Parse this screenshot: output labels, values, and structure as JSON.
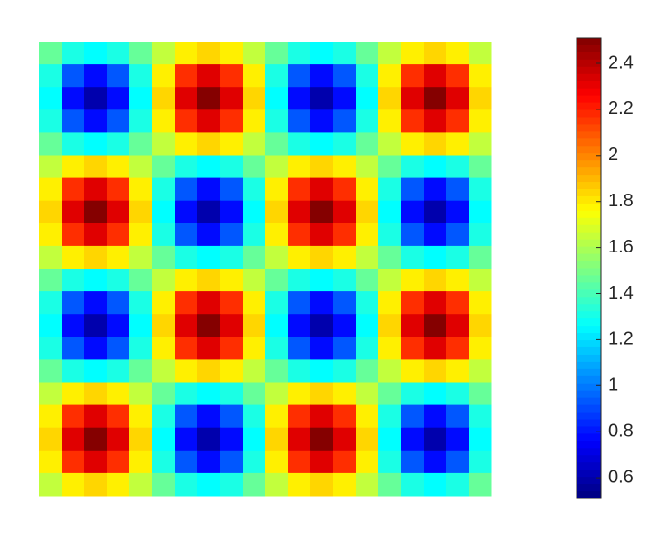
{
  "chart_data": {
    "type": "heatmap",
    "colormap": "jet",
    "z": [
      [
        1.46,
        1.31,
        1.26,
        1.31,
        1.46,
        1.64,
        1.79,
        1.84,
        1.79,
        1.64,
        1.46,
        1.31,
        1.26,
        1.31,
        1.46,
        1.64,
        1.79,
        1.84,
        1.79,
        1.64
      ],
      [
        1.31,
        0.93,
        0.78,
        0.93,
        1.31,
        1.79,
        2.17,
        2.32,
        2.17,
        1.79,
        1.31,
        0.93,
        0.78,
        0.93,
        1.31,
        1.79,
        2.17,
        2.32,
        2.17,
        1.79
      ],
      [
        1.26,
        0.78,
        0.6,
        0.78,
        1.26,
        1.84,
        2.32,
        2.5,
        2.32,
        1.84,
        1.26,
        0.78,
        0.6,
        0.78,
        1.26,
        1.84,
        2.32,
        2.5,
        2.32,
        1.84
      ],
      [
        1.31,
        0.93,
        0.78,
        0.93,
        1.31,
        1.79,
        2.17,
        2.32,
        2.17,
        1.79,
        1.31,
        0.93,
        0.78,
        0.93,
        1.31,
        1.79,
        2.17,
        2.32,
        2.17,
        1.79
      ],
      [
        1.46,
        1.31,
        1.26,
        1.31,
        1.46,
        1.64,
        1.79,
        1.84,
        1.79,
        1.64,
        1.46,
        1.31,
        1.26,
        1.31,
        1.46,
        1.64,
        1.79,
        1.84,
        1.79,
        1.64
      ],
      [
        1.64,
        1.79,
        1.84,
        1.79,
        1.64,
        1.46,
        1.31,
        1.26,
        1.31,
        1.46,
        1.64,
        1.79,
        1.84,
        1.79,
        1.64,
        1.46,
        1.31,
        1.26,
        1.31,
        1.46
      ],
      [
        1.79,
        2.17,
        2.32,
        2.17,
        1.79,
        1.31,
        0.93,
        0.78,
        0.93,
        1.31,
        1.79,
        2.17,
        2.32,
        2.17,
        1.79,
        1.31,
        0.93,
        0.78,
        0.93,
        1.31
      ],
      [
        1.84,
        2.32,
        2.5,
        2.32,
        1.84,
        1.26,
        0.78,
        0.6,
        0.78,
        1.26,
        1.84,
        2.32,
        2.5,
        2.32,
        1.84,
        1.26,
        0.78,
        0.6,
        0.78,
        1.26
      ],
      [
        1.79,
        2.17,
        2.32,
        2.17,
        1.79,
        1.31,
        0.93,
        0.78,
        0.93,
        1.31,
        1.79,
        2.17,
        2.32,
        2.17,
        1.79,
        1.31,
        0.93,
        0.78,
        0.93,
        1.31
      ],
      [
        1.64,
        1.79,
        1.84,
        1.79,
        1.64,
        1.46,
        1.31,
        1.26,
        1.31,
        1.46,
        1.64,
        1.79,
        1.84,
        1.79,
        1.64,
        1.46,
        1.31,
        1.26,
        1.31,
        1.46
      ],
      [
        1.46,
        1.31,
        1.26,
        1.31,
        1.46,
        1.64,
        1.79,
        1.84,
        1.79,
        1.64,
        1.46,
        1.31,
        1.26,
        1.31,
        1.46,
        1.64,
        1.79,
        1.84,
        1.79,
        1.64
      ],
      [
        1.31,
        0.93,
        0.78,
        0.93,
        1.31,
        1.79,
        2.17,
        2.32,
        2.17,
        1.79,
        1.31,
        0.93,
        0.78,
        0.93,
        1.31,
        1.79,
        2.17,
        2.32,
        2.17,
        1.79
      ],
      [
        1.26,
        0.78,
        0.6,
        0.78,
        1.26,
        1.84,
        2.32,
        2.5,
        2.32,
        1.84,
        1.26,
        0.78,
        0.6,
        0.78,
        1.26,
        1.84,
        2.32,
        2.5,
        2.32,
        1.84
      ],
      [
        1.31,
        0.93,
        0.78,
        0.93,
        1.31,
        1.79,
        2.17,
        2.32,
        2.17,
        1.79,
        1.31,
        0.93,
        0.78,
        0.93,
        1.31,
        1.79,
        2.17,
        2.32,
        2.17,
        1.79
      ],
      [
        1.46,
        1.31,
        1.26,
        1.31,
        1.46,
        1.64,
        1.79,
        1.84,
        1.79,
        1.64,
        1.46,
        1.31,
        1.26,
        1.31,
        1.46,
        1.64,
        1.79,
        1.84,
        1.79,
        1.64
      ],
      [
        1.64,
        1.79,
        1.84,
        1.79,
        1.64,
        1.46,
        1.31,
        1.26,
        1.31,
        1.46,
        1.64,
        1.79,
        1.84,
        1.79,
        1.64,
        1.46,
        1.31,
        1.26,
        1.31,
        1.46
      ],
      [
        1.79,
        2.17,
        2.32,
        2.17,
        1.79,
        1.31,
        0.93,
        0.78,
        0.93,
        1.31,
        1.79,
        2.17,
        2.32,
        2.17,
        1.79,
        1.31,
        0.93,
        0.78,
        0.93,
        1.31
      ],
      [
        1.84,
        2.32,
        2.5,
        2.32,
        1.84,
        1.26,
        0.78,
        0.6,
        0.78,
        1.26,
        1.84,
        2.32,
        2.5,
        2.32,
        1.84,
        1.26,
        0.78,
        0.6,
        0.78,
        1.26
      ],
      [
        1.79,
        2.17,
        2.32,
        2.17,
        1.79,
        1.31,
        0.93,
        0.78,
        0.93,
        1.31,
        1.79,
        2.17,
        2.32,
        2.17,
        1.79,
        1.31,
        0.93,
        0.78,
        0.93,
        1.31
      ],
      [
        1.64,
        1.79,
        1.84,
        1.79,
        1.64,
        1.46,
        1.31,
        1.26,
        1.31,
        1.46,
        1.64,
        1.79,
        1.84,
        1.79,
        1.64,
        1.46,
        1.31,
        1.26,
        1.31,
        1.46
      ]
    ],
    "clim": [
      0.51,
      2.51
    ],
    "cticks": [
      0.6,
      0.8,
      1,
      1.2,
      1.4,
      1.6,
      1.8,
      2,
      2.2,
      2.4
    ]
  }
}
